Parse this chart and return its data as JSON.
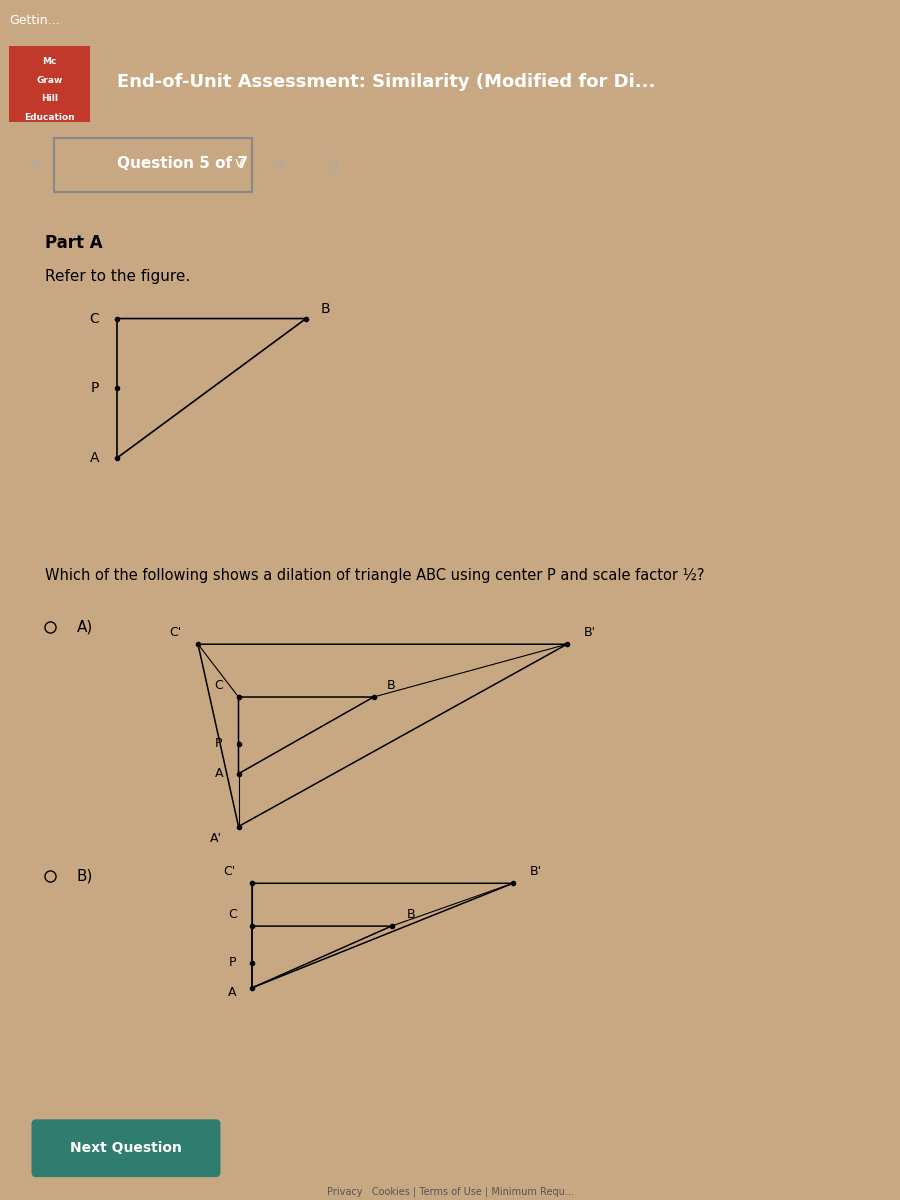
{
  "bg_color": "#c8a882",
  "header_bg": "#1a1a1a",
  "header_text": "End-of-Unit Assessment: Similarity (Modified for Di...",
  "header_text_color": "#ffffff",
  "logo_text": [
    "Mc",
    "Graw",
    "Hill",
    "Education"
  ],
  "logo_bg": "#c0392b",
  "question_label": "Question 5 of 7",
  "part_label": "Part A",
  "refer_text": "Refer to the figure.",
  "question_text": "Which of the following shows a dilation of triangle ABC using center P and scale factor ½?",
  "title_tab": "Gettin...",
  "next_btn_text": "Next Question",
  "next_btn_color": "#2e7d6e",
  "tab_bg": "#2d2d2d"
}
